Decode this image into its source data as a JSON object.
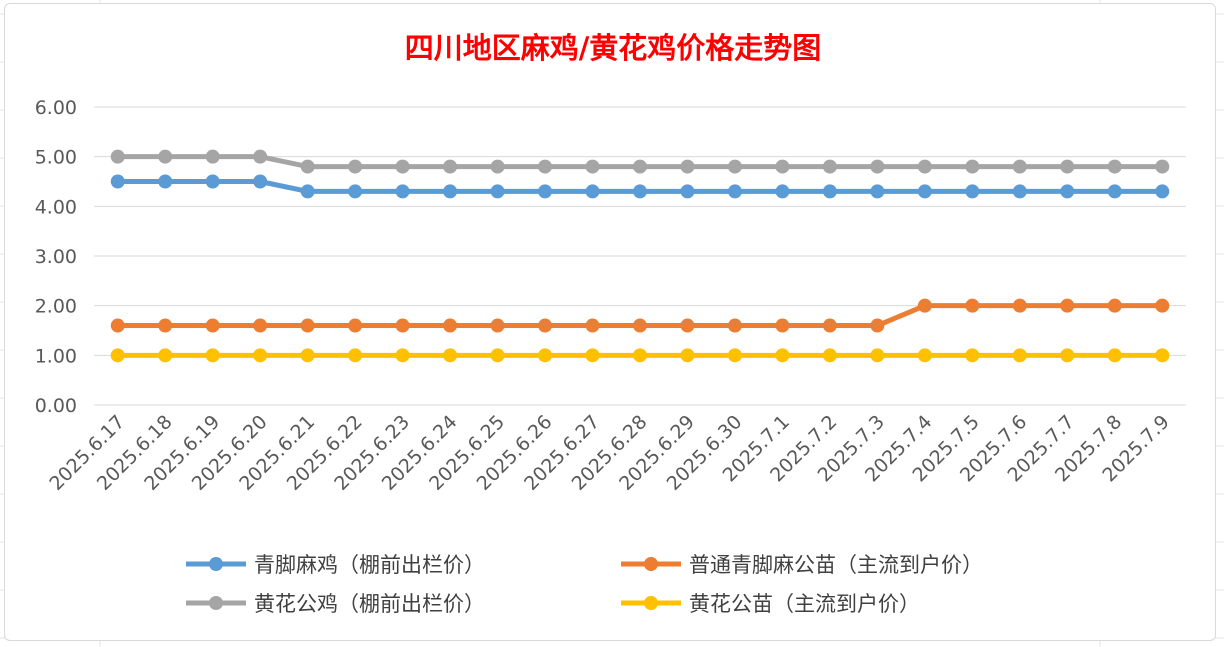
{
  "chart_data": {
    "type": "line",
    "title": "四川地区麻鸡/黄花鸡价格走势图",
    "title_color": "#ff0000",
    "categories": [
      "2025.6.17",
      "2025.6.18",
      "2025.6.19",
      "2025.6.20",
      "2025.6.21",
      "2025.6.22",
      "2025.6.23",
      "2025.6.24",
      "2025.6.25",
      "2025.6.26",
      "2025.6.27",
      "2025.6.28",
      "2025.6.29",
      "2025.6.30",
      "2025.7.1",
      "2025.7.2",
      "2025.7.3",
      "2025.7.4",
      "2025.7.5",
      "2025.7.6",
      "2025.7.7",
      "2025.7.8",
      "2025.7.9"
    ],
    "yticks": [
      "0.00",
      "1.00",
      "2.00",
      "3.00",
      "4.00",
      "5.00",
      "6.00"
    ],
    "ylim": [
      0,
      6
    ],
    "grid": true,
    "legend_position": "bottom",
    "series": [
      {
        "name": "青脚麻鸡（棚前出栏价）",
        "color": "#5b9bd5",
        "values": [
          4.5,
          4.5,
          4.5,
          4.5,
          4.3,
          4.3,
          4.3,
          4.3,
          4.3,
          4.3,
          4.3,
          4.3,
          4.3,
          4.3,
          4.3,
          4.3,
          4.3,
          4.3,
          4.3,
          4.3,
          4.3,
          4.3,
          4.3
        ]
      },
      {
        "name": "普通青脚麻公苗（主流到户价）",
        "color": "#ed7d31",
        "values": [
          1.6,
          1.6,
          1.6,
          1.6,
          1.6,
          1.6,
          1.6,
          1.6,
          1.6,
          1.6,
          1.6,
          1.6,
          1.6,
          1.6,
          1.6,
          1.6,
          1.6,
          2.0,
          2.0,
          2.0,
          2.0,
          2.0,
          2.0
        ]
      },
      {
        "name": "黄花公鸡（棚前出栏价）",
        "color": "#a5a5a5",
        "values": [
          5.0,
          5.0,
          5.0,
          5.0,
          4.8,
          4.8,
          4.8,
          4.8,
          4.8,
          4.8,
          4.8,
          4.8,
          4.8,
          4.8,
          4.8,
          4.8,
          4.8,
          4.8,
          4.8,
          4.8,
          4.8,
          4.8,
          4.8
        ]
      },
      {
        "name": "黄花公苗（主流到户价）",
        "color": "#ffc000",
        "values": [
          1.0,
          1.0,
          1.0,
          1.0,
          1.0,
          1.0,
          1.0,
          1.0,
          1.0,
          1.0,
          1.0,
          1.0,
          1.0,
          1.0,
          1.0,
          1.0,
          1.0,
          1.0,
          1.0,
          1.0,
          1.0,
          1.0,
          1.0
        ]
      }
    ]
  }
}
